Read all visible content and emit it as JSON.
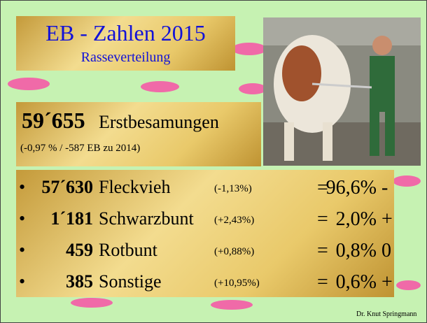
{
  "slide": {
    "title": "EB - Zahlen 2015",
    "subtitle": "Rasseverteilung",
    "total": {
      "number": "59´655",
      "label": "Erstbesamungen",
      "note": "(-0,97 % / -587 EB zu 2014)"
    },
    "rows": [
      {
        "number": "57´630",
        "name": "Fleckvieh",
        "change": "(-1,13%)",
        "eq": "=",
        "share": "96,6%",
        "trend": "-"
      },
      {
        "number": "1´181",
        "name": "Schwarzbunt",
        "change": "(+2,43%)",
        "eq": "=",
        "share": "2,0%",
        "trend": "+"
      },
      {
        "number": "459",
        "name": "Rotbunt",
        "change": "(+0,88%)",
        "eq": "=",
        "share": "0,8%",
        "trend": "0"
      },
      {
        "number": "385",
        "name": "Sonstige",
        "change": "(+10,95%)",
        "eq": "=",
        "share": "0,6%",
        "trend": "+"
      }
    ],
    "footer": "Dr. Knut Springmann"
  }
}
